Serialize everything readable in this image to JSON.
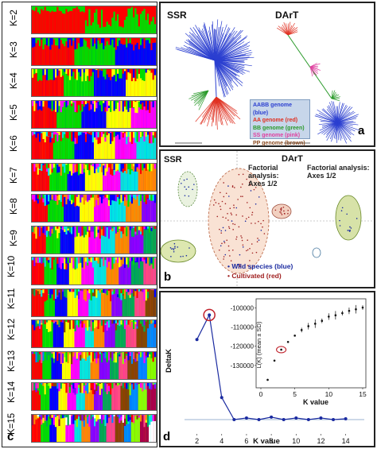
{
  "figure": {
    "panel_a": {
      "tag": "a",
      "left_title": "SSR",
      "right_title": "DArT",
      "legend": [
        {
          "text": "AABB genome (blue)",
          "color": "#2b3fd0"
        },
        {
          "text": "AA genome (red)",
          "color": "#e03020"
        },
        {
          "text": "BB genome (green)",
          "color": "#2a9a2a"
        },
        {
          "text": "SS genome (pink)",
          "color": "#e040a0"
        },
        {
          "text": "PP genome (brown)",
          "color": "#8a4a20"
        }
      ]
    },
    "panel_b": {
      "tag": "b",
      "left_title": "SSR",
      "right_title": "DArT",
      "left_note": "Factorial analysis: Axes 1/2",
      "right_note": "Factorial analysis: Axes 1/2",
      "legend_wild": "Wild species (blue)",
      "legend_cult": "Cultivated (red)",
      "color_wild": "#1a2aa0",
      "color_cult": "#a02020"
    },
    "panel_c": {
      "tag": "c",
      "k_labels": [
        "K=2",
        "K=3",
        "K=4",
        "K=5",
        "K=6",
        "K=7",
        "K=8",
        "K=9",
        "K=10",
        "K=11",
        "K=12",
        "K=13",
        "K=14",
        "K=15"
      ],
      "palette": [
        "#ff0000",
        "#00dd00",
        "#0000ff",
        "#ffff00",
        "#ff00ff",
        "#00e5e5",
        "#ff8800",
        "#8800ff",
        "#00aa55",
        "#ff4488",
        "#884400",
        "#0088ff",
        "#88ff00",
        "#aa0044",
        "#ffffff"
      ]
    },
    "panel_d": {
      "tag": "d"
    }
  },
  "chart_data": {
    "type": "line",
    "title": "",
    "xlabel": "K value",
    "ylabel": "DeltaK",
    "x": [
      2,
      3,
      4,
      5,
      6,
      7,
      8,
      9,
      10,
      11,
      12,
      13,
      14
    ],
    "xticks": [
      2,
      4,
      6,
      8,
      10,
      12,
      14
    ],
    "xlim": [
      1,
      15.5
    ],
    "series": [
      {
        "values": [
          98,
          128,
          27,
          0,
          2,
          0,
          3,
          0,
          2,
          0,
          2,
          0,
          1
        ]
      }
    ],
    "highlighted_x": 3,
    "line_color": "#1a2aa0",
    "highlight_color": "#c0202a",
    "inset": {
      "type": "scatter",
      "xlabel": "K value",
      "ylabel": "L(K) (mean ± SD)",
      "xticks": [
        0,
        5,
        10,
        15
      ],
      "yticks": [
        -100000,
        -110000,
        -120000,
        -130000
      ],
      "xlim": [
        0,
        15
      ],
      "ylim": [
        -140000,
        -97000
      ],
      "x": [
        1,
        2,
        3,
        4,
        5,
        6,
        7,
        8,
        9,
        10,
        11,
        12,
        13,
        14,
        15
      ],
      "y": [
        -137500,
        -127500,
        -121800,
        -117800,
        -114500,
        -111600,
        -109600,
        -108300,
        -106800,
        -104600,
        -103900,
        -102800,
        -101600,
        -100800,
        -99900
      ],
      "highlighted_x": 3
    }
  }
}
